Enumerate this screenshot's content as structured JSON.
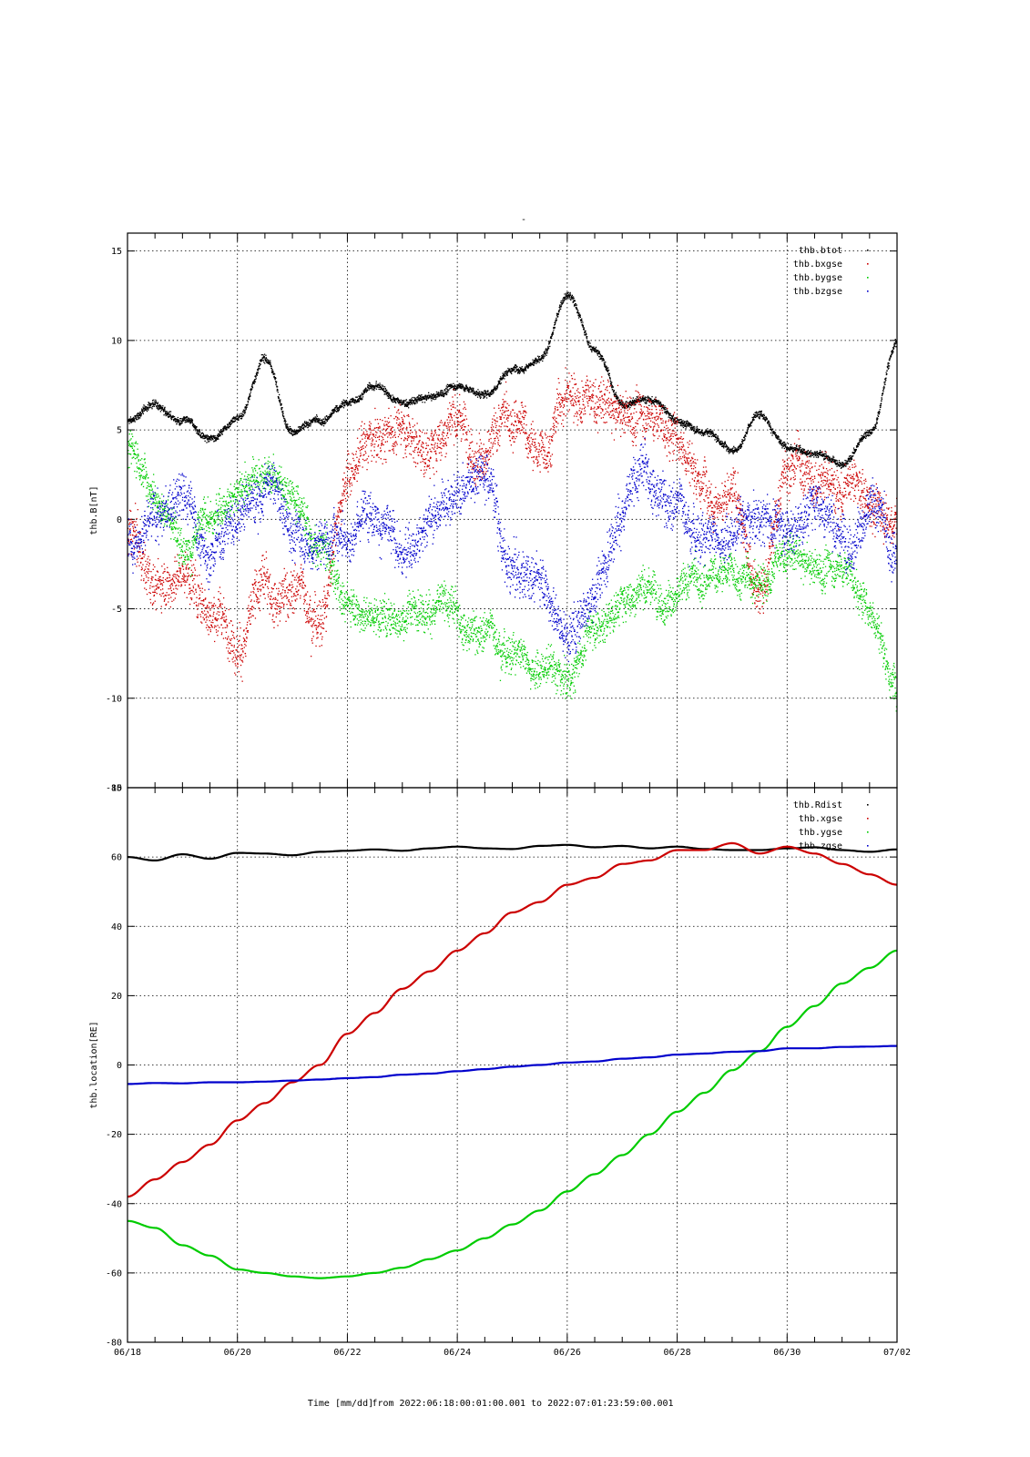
{
  "figure": {
    "top_title": "-",
    "footer": {
      "xlabel": "Time [mm/dd]",
      "range_text": "from 2022:06:18:00:01:00.001  to  2022:07:01:23:59:00.001"
    }
  },
  "colors": {
    "black": "#000000",
    "red": "#cc0000",
    "green": "#00cc00",
    "blue": "#0000cc"
  },
  "chart_data": [
    {
      "type": "scatter",
      "title": "",
      "xlabel": "",
      "ylabel": "thb.B[nT]",
      "xlim": [
        "06/18",
        "07/02"
      ],
      "ylim": [
        -15,
        16
      ],
      "yticks": [
        -15,
        -10,
        -5,
        0,
        5,
        10,
        15
      ],
      "grid": true,
      "legend": "top-right",
      "series": [
        {
          "name": "thb.btot",
          "color": "#000000",
          "x": [
            "06/18",
            "06/18 12h",
            "06/19",
            "06/19 12h",
            "06/20",
            "06/20 12h",
            "06/21",
            "06/21 12h",
            "06/22",
            "06/22 12h",
            "06/23",
            "06/23 12h",
            "06/24",
            "06/24 12h",
            "06/25",
            "06/25 12h",
            "06/26",
            "06/26 12h",
            "06/27",
            "06/27 12h",
            "06/28",
            "06/28 12h",
            "06/29",
            "06/29 12h",
            "06/30",
            "06/30 12h",
            "07/01",
            "07/01 12h",
            "07/02"
          ],
          "values": [
            5.5,
            6.5,
            5.5,
            4.5,
            5.8,
            9.0,
            5.0,
            5.5,
            6.5,
            7.5,
            6.5,
            6.8,
            7.5,
            7.0,
            8.5,
            9.0,
            12.5,
            9.5,
            6.5,
            6.8,
            5.5,
            5.0,
            4.0,
            6.0,
            4.0,
            3.8,
            3.2,
            5.0,
            10.0
          ],
          "spread": 0.4
        },
        {
          "name": "thb.bxgse",
          "color": "#cc0000",
          "x": [
            "06/18",
            "06/18 12h",
            "06/19",
            "06/19 12h",
            "06/20",
            "06/20 12h",
            "06/21",
            "06/21 12h",
            "06/22",
            "06/22 12h",
            "06/23",
            "06/23 12h",
            "06/24",
            "06/24 12h",
            "06/25",
            "06/25 12h",
            "06/26",
            "06/26 12h",
            "06/27",
            "06/27 12h",
            "06/28",
            "06/28 12h",
            "06/29",
            "06/29 12h",
            "06/30",
            "06/30 12h",
            "07/01",
            "07/01 12h",
            "07/02"
          ],
          "values": [
            -1.0,
            -3.5,
            -2.5,
            -4.5,
            -6.5,
            -4.0,
            -3.5,
            -5.0,
            3.0,
            4.5,
            5.0,
            4.0,
            6.0,
            4.0,
            5.5,
            3.5,
            7.0,
            6.5,
            5.5,
            6.0,
            4.5,
            2.5,
            1.5,
            -4.5,
            3.0,
            2.5,
            2.0,
            1.0,
            0.5
          ],
          "spread": 2.5
        },
        {
          "name": "thb.bygse",
          "color": "#00cc00",
          "x": [
            "06/18",
            "06/18 12h",
            "06/19",
            "06/19 12h",
            "06/20",
            "06/20 12h",
            "06/21",
            "06/21 12h",
            "06/22",
            "06/22 12h",
            "06/23",
            "06/23 12h",
            "06/24",
            "06/24 12h",
            "06/25",
            "06/25 12h",
            "06/26",
            "06/26 12h",
            "06/27",
            "06/27 12h",
            "06/28",
            "06/28 12h",
            "06/29",
            "06/29 12h",
            "06/30",
            "06/30 12h",
            "07/01",
            "07/01 12h",
            "07/02"
          ],
          "values": [
            4.0,
            2.0,
            -1.0,
            0.0,
            2.0,
            3.0,
            2.0,
            -1.5,
            -4.5,
            -5.0,
            -5.0,
            -4.5,
            -5.5,
            -6.0,
            -7.0,
            -8.0,
            -9.0,
            -6.0,
            -4.5,
            -3.5,
            -4.0,
            -3.5,
            -3.0,
            -3.5,
            -2.0,
            -3.0,
            -2.5,
            -5.0,
            -9.0
          ],
          "spread": 2.0
        },
        {
          "name": "thb.bzgse",
          "color": "#0000cc",
          "x": [
            "06/18",
            "06/18 12h",
            "06/19",
            "06/19 12h",
            "06/20",
            "06/20 12h",
            "06/21",
            "06/21 12h",
            "06/22",
            "06/22 12h",
            "06/23",
            "06/23 12h",
            "06/24",
            "06/24 12h",
            "06/25",
            "06/25 12h",
            "06/26",
            "06/26 12h",
            "06/27",
            "06/27 12h",
            "06/28",
            "06/28 12h",
            "06/29",
            "06/29 12h",
            "06/30",
            "06/30 12h",
            "07/01",
            "07/01 12h",
            "07/02"
          ],
          "values": [
            -1.0,
            0.0,
            1.0,
            -2.0,
            0.5,
            2.0,
            -0.5,
            -1.0,
            0.0,
            1.0,
            -2.0,
            0.5,
            2.0,
            3.5,
            -3.0,
            -3.0,
            -6.0,
            -3.5,
            1.0,
            2.5,
            1.0,
            -0.5,
            -0.5,
            0.0,
            -0.5,
            1.0,
            -0.5,
            0.5,
            -2.0
          ],
          "spread": 2.5
        }
      ]
    },
    {
      "type": "line",
      "title": "",
      "xlabel": "Time [mm/dd]",
      "ylabel": "thb.location[RE]",
      "xlim": [
        "06/18",
        "07/02"
      ],
      "ylim": [
        -80,
        80
      ],
      "yticks": [
        -80,
        -60,
        -40,
        -20,
        0,
        20,
        40,
        60,
        80
      ],
      "xticks": [
        "06/18",
        "06/20",
        "06/22",
        "06/24",
        "06/26",
        "06/28",
        "06/30",
        "07/02"
      ],
      "grid": true,
      "legend": "top-right",
      "series": [
        {
          "name": "thb.Rdist",
          "color": "#000000",
          "x": [
            "06/18",
            "06/18 12h",
            "06/19",
            "06/19 12h",
            "06/20",
            "06/20 12h",
            "06/21",
            "06/21 12h",
            "06/22",
            "06/22 12h",
            "06/23",
            "06/23 12h",
            "06/24",
            "06/24 12h",
            "06/25",
            "06/25 12h",
            "06/26",
            "06/26 12h",
            "06/27",
            "06/27 12h",
            "06/28",
            "06/28 12h",
            "06/29",
            "06/29 12h",
            "06/30",
            "06/30 12h",
            "07/01",
            "07/01 12h",
            "07/02"
          ],
          "values": [
            60.0,
            59.0,
            60.8,
            59.5,
            61.2,
            61.0,
            60.5,
            61.5,
            61.8,
            62.2,
            61.8,
            62.5,
            63.0,
            62.5,
            62.3,
            63.2,
            63.5,
            62.8,
            63.2,
            62.5,
            63.0,
            62.3,
            62.0,
            62.0,
            62.5,
            62.8,
            62.0,
            61.5,
            62.2
          ]
        },
        {
          "name": "thb.xgse",
          "color": "#cc0000",
          "x": [
            "06/18",
            "06/18 12h",
            "06/19",
            "06/19 12h",
            "06/20",
            "06/20 12h",
            "06/21",
            "06/21 12h",
            "06/22",
            "06/22 12h",
            "06/23",
            "06/23 12h",
            "06/24",
            "06/24 12h",
            "06/25",
            "06/25 12h",
            "06/26",
            "06/26 12h",
            "06/27",
            "06/27 12h",
            "06/28",
            "06/28 12h",
            "06/29",
            "06/29 12h",
            "06/30",
            "06/30 12h",
            "07/01",
            "07/01 12h",
            "07/02"
          ],
          "values": [
            -38.0,
            -33.0,
            -28.0,
            -23.0,
            -16.0,
            -11.0,
            -5.0,
            0.0,
            9.0,
            15.0,
            22.0,
            27.0,
            33.0,
            38.0,
            44.0,
            47.0,
            52.0,
            54.0,
            58.0,
            59.0,
            62.0,
            62.0,
            64.0,
            61.0,
            63.0,
            61.0,
            58.0,
            55.0,
            52.0
          ]
        },
        {
          "name": "thb.ygse",
          "color": "#00cc00",
          "x": [
            "06/18",
            "06/18 12h",
            "06/19",
            "06/19 12h",
            "06/20",
            "06/20 12h",
            "06/21",
            "06/21 12h",
            "06/22",
            "06/22 12h",
            "06/23",
            "06/23 12h",
            "06/24",
            "06/24 12h",
            "06/25",
            "06/25 12h",
            "06/26",
            "06/26 12h",
            "06/27",
            "06/27 12h",
            "06/28",
            "06/28 12h",
            "06/29",
            "06/29 12h",
            "06/30",
            "06/30 12h",
            "07/01",
            "07/01 12h",
            "07/02"
          ],
          "values": [
            -45.0,
            -47.0,
            -52.0,
            -55.0,
            -59.0,
            -60.0,
            -61.0,
            -61.5,
            -61.0,
            -60.0,
            -58.5,
            -56.0,
            -53.5,
            -50.0,
            -46.0,
            -42.0,
            -36.5,
            -31.5,
            -26.0,
            -20.0,
            -13.5,
            -8.0,
            -1.5,
            4.0,
            11.0,
            17.0,
            23.5,
            28.0,
            33.0
          ]
        },
        {
          "name": "thb.zgse",
          "color": "#0000cc",
          "x": [
            "06/18",
            "06/18 12h",
            "06/19",
            "06/19 12h",
            "06/20",
            "06/20 12h",
            "06/21",
            "06/21 12h",
            "06/22",
            "06/22 12h",
            "06/23",
            "06/23 12h",
            "06/24",
            "06/24 12h",
            "06/25",
            "06/25 12h",
            "06/26",
            "06/26 12h",
            "06/27",
            "06/27 12h",
            "06/28",
            "06/28 12h",
            "06/29",
            "06/29 12h",
            "06/30",
            "06/30 12h",
            "07/01",
            "07/01 12h",
            "07/02"
          ],
          "values": [
            -5.5,
            -5.2,
            -5.3,
            -5.0,
            -5.0,
            -4.8,
            -4.5,
            -4.2,
            -3.8,
            -3.5,
            -2.8,
            -2.5,
            -1.8,
            -1.2,
            -0.5,
            0.0,
            0.7,
            1.0,
            1.8,
            2.2,
            3.0,
            3.3,
            3.8,
            4.0,
            4.8,
            4.8,
            5.2,
            5.3,
            5.5
          ]
        }
      ]
    }
  ]
}
